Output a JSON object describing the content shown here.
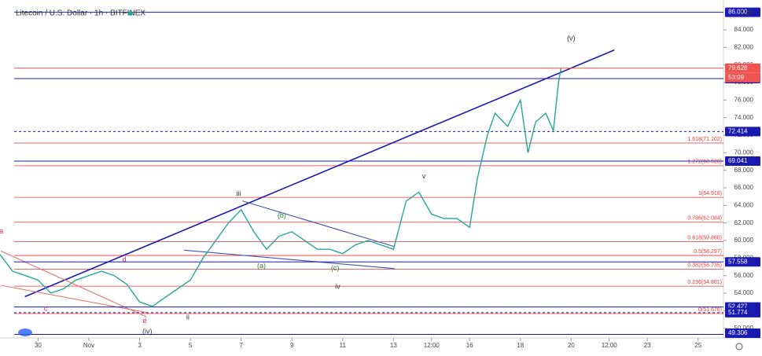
{
  "chart_data": {
    "type": "line",
    "title": "Litecoin / U.S. Dollar · 1h · BITFINEX",
    "currency": "USD",
    "countdown": "53:09",
    "x": [
      -2.5,
      -2,
      -1.5,
      -1,
      -0.5,
      0,
      0.5,
      1,
      1.5,
      2,
      2.5,
      3,
      3.5,
      4,
      4.5,
      5,
      5.5,
      6,
      6.5,
      7,
      7.5,
      8,
      8.5,
      9,
      9.5,
      10,
      10.5,
      11,
      11.5,
      12,
      12.5,
      13,
      13.5,
      14,
      14.5,
      15,
      15.5,
      16,
      16.3,
      16.7,
      17,
      17.5,
      18,
      18.3,
      18.6,
      19,
      19.3,
      19.5,
      19.6
    ],
    "series": [
      {
        "name": "LTCUSD",
        "color": "#26a69a",
        "values": [
          58.4,
          56.5,
          56,
          55.5,
          54,
          54.5,
          55.5,
          56,
          56.5,
          56,
          55,
          53,
          52.5,
          53.5,
          54.5,
          55.5,
          58,
          60,
          62,
          63.5,
          61,
          59,
          60.5,
          61,
          60,
          59,
          59,
          58.5,
          59.5,
          60,
          59.5,
          59,
          64.5,
          65.5,
          63,
          62.5,
          62.5,
          61.5,
          67,
          72,
          74.5,
          73,
          76,
          70,
          73.5,
          74.5,
          72.5,
          78,
          79.628
        ]
      }
    ],
    "xlim": [
      -2.5,
      26
    ],
    "ylim": [
      48.9,
      87.4
    ],
    "xticks": [
      {
        "value": -1,
        "label": "30"
      },
      {
        "value": 1,
        "label": "Nov"
      },
      3,
      5,
      7,
      9,
      11,
      13,
      {
        "value": 14.5,
        "label": "12:00"
      },
      16,
      18,
      20,
      {
        "value": 21.5,
        "label": "12:00"
      },
      23,
      25
    ],
    "yticks": [
      {
        "value": 50,
        "label": "50.000"
      },
      {
        "value": 52,
        "label": "52.000"
      },
      {
        "value": 54,
        "label": "54.000"
      },
      {
        "value": 56,
        "label": "56.000"
      },
      {
        "value": 58,
        "label": "58.000"
      },
      {
        "value": 60,
        "label": "60.000"
      },
      {
        "value": 62,
        "label": "62.000"
      },
      {
        "value": 64,
        "label": "64.000"
      },
      {
        "value": 66,
        "label": "66.000"
      },
      {
        "value": 68,
        "label": "68.000"
      },
      {
        "value": 70,
        "label": "70.000"
      },
      {
        "value": 72,
        "label": "72.000"
      },
      {
        "value": 74,
        "label": "74.000"
      },
      {
        "value": 76,
        "label": "76.000"
      },
      {
        "value": 78,
        "label": "78.000"
      },
      {
        "value": 80,
        "label": "80.000"
      },
      {
        "value": 82,
        "label": "82.000"
      },
      {
        "value": 84,
        "label": "84.000"
      }
    ],
    "fib_levels": [
      {
        "label": "1.618(71.102)",
        "value": 71.102
      },
      {
        "label": "1.272(68.520)",
        "value": 68.52
      },
      {
        "label": "1(64.918)",
        "value": 64.918
      },
      {
        "label": "0.786(62.084)",
        "value": 62.084
      },
      {
        "label": "0.618(59.860)",
        "value": 59.86
      },
      {
        "label": "0.5(58.297)",
        "value": 58.297
      },
      {
        "label": "0.382(56.735)",
        "value": 56.735
      },
      {
        "label": "0.236(54.801)",
        "value": 54.801
      },
      {
        "label": "0(51.676)",
        "value": 51.676
      }
    ],
    "fib_color": "#e53935",
    "price_markers": [
      {
        "value": 86,
        "label": "86.000",
        "color": "#1a1ab0",
        "dashed": false
      },
      {
        "value": 79.628,
        "color": "#ef5350",
        "dashed": false
      },
      {
        "value": 78.442,
        "color": "#1a1ab0",
        "dashed": false
      },
      {
        "value": 72.414,
        "color": "#1a1ab0",
        "dashed": true
      },
      {
        "value": 69.041,
        "color": "#1a1ab0",
        "dashed": false
      },
      {
        "value": 57.558,
        "color": "#1a1ab0",
        "dashed": false
      },
      {
        "value": 52.427,
        "color": "#1a1ab0",
        "dashed": false
      },
      {
        "value": 51.774,
        "color": "#1a1ab0",
        "dashed": true
      },
      {
        "value": 49.306,
        "color": "#1a1ab0",
        "dashed": false
      }
    ],
    "trendlines": [
      {
        "x": [
          -1.52,
          21.7
        ],
        "y": [
          53.6,
          81.7
        ],
        "color": "#1a1ab0"
      },
      {
        "x": [
          7.06,
          13.05
        ],
        "y": [
          64.5,
          59.3
        ],
        "color": "#3f51b5"
      },
      {
        "x": [
          4.75,
          13.05
        ],
        "y": [
          58.9,
          56.8
        ],
        "color": "#3f51b5"
      },
      {
        "x": [
          -2.47,
          3.27
        ],
        "y": [
          58.8,
          51.3
        ],
        "color": "#e57373"
      },
      {
        "x": [
          -2.47,
          3.27
        ],
        "y": [
          54.9,
          51.8
        ],
        "color": "#e57373"
      }
    ],
    "annotations": [
      {
        "text": "(v)",
        "x": 20,
        "y": 83,
        "color": "#333333"
      },
      {
        "text": "v",
        "x": 14.2,
        "y": 67.3,
        "color": "#333333"
      },
      {
        "text": "iii",
        "x": 6.9,
        "y": 65.3,
        "color": "#333333"
      },
      {
        "text": "iv",
        "x": 10.8,
        "y": 54.7,
        "color": "#333333"
      },
      {
        "text": "ii",
        "x": 4.9,
        "y": 51.2,
        "color": "#333333"
      },
      {
        "text": "(iv)",
        "x": 3.3,
        "y": 49.6,
        "color": "#333333"
      },
      {
        "text": "(a)",
        "x": 7.8,
        "y": 57.1,
        "color": "#2e7d32"
      },
      {
        "text": "(b)",
        "x": 8.6,
        "y": 62.8,
        "color": "#2e7d32"
      },
      {
        "text": "(c)",
        "x": 10.7,
        "y": 56.8,
        "color": "#2e7d32"
      },
      {
        "text": "a",
        "x": -2.45,
        "y": 61,
        "color": "#e91e63"
      },
      {
        "text": "c",
        "x": -0.7,
        "y": 52.2,
        "color": "#e91e63"
      },
      {
        "text": "d",
        "x": 2.4,
        "y": 57.8,
        "color": "#e91e63"
      },
      {
        "text": "e",
        "x": 3.2,
        "y": 50.8,
        "color": "#e91e63"
      }
    ]
  }
}
